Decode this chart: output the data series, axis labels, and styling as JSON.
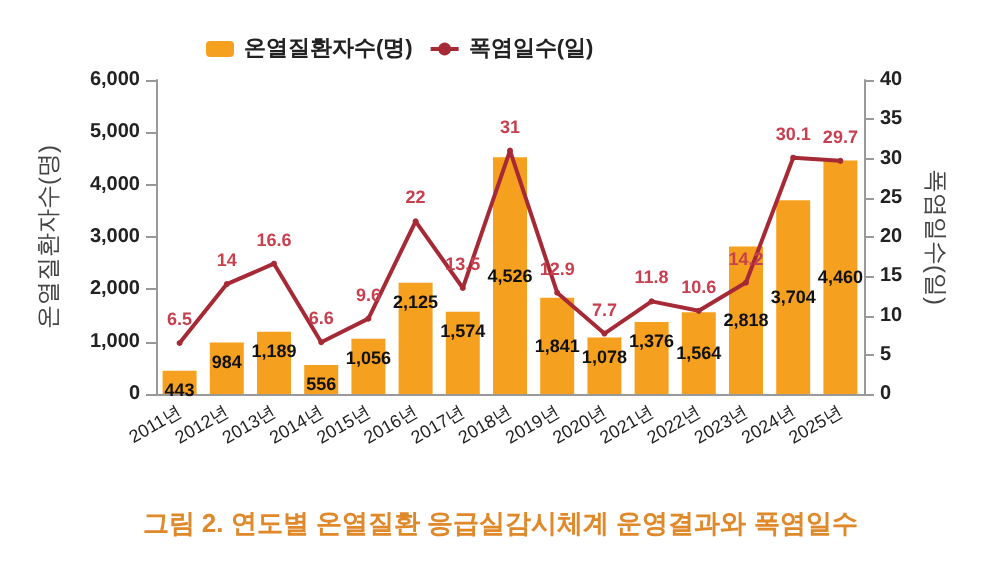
{
  "chart_data": {
    "type": "bar",
    "title": "그림 2. 연도별 온열질환 응급실감시체계 운영결과와 폭염일수",
    "ylabel": "온열질환자수(명)",
    "y2label": "폭염일수(일)",
    "categories": [
      "2011년",
      "2012년",
      "2013년",
      "2014년",
      "2015년",
      "2016년",
      "2017년",
      "2018년",
      "2019년",
      "2020년",
      "2021년",
      "2022년",
      "2023년",
      "2024년",
      "2025년"
    ],
    "series": [
      {
        "name": "온열질환자수(명)",
        "color": "#f5a01e",
        "values": [
          443,
          984,
          1189,
          556,
          1056,
          2125,
          1574,
          4526,
          1841,
          1078,
          1376,
          1564,
          2818,
          3704,
          4460
        ],
        "value_labels": [
          "443",
          "984",
          "1,189",
          "556",
          "1,056",
          "2,125",
          "1,574",
          "4,526",
          "1,841",
          "1,078",
          "1,376",
          "1,564",
          "2,818",
          "3,704",
          "4,460"
        ]
      },
      {
        "name": "폭염일수(일)",
        "type": "line",
        "axis": "y2",
        "color": "#a52a36",
        "values": [
          6.5,
          14,
          16.6,
          6.6,
          9.6,
          22,
          13.5,
          31,
          12.9,
          7.7,
          11.8,
          10.6,
          14.2,
          30.1,
          29.7
        ],
        "value_labels": [
          "6.5",
          "14",
          "16.6",
          "6.6",
          "9.6",
          "22",
          "13.5",
          "31",
          "12.9",
          "7.7",
          "11.8",
          "10.6",
          "14.2",
          "30.1",
          "29.7"
        ]
      }
    ],
    "ylim": [
      0,
      6000
    ],
    "yticks": [
      0,
      {
        "value": 1000,
        "label": "1,000"
      },
      {
        "value": 2000,
        "label": "2,000"
      },
      {
        "value": 3000,
        "label": "3,000"
      },
      {
        "value": 4000,
        "label": "4,000"
      },
      {
        "value": 5000,
        "label": "5,000"
      },
      {
        "value": 6000,
        "label": "6,000"
      }
    ],
    "y2lim": [
      0,
      40
    ],
    "y2ticks": [
      0,
      5,
      10,
      15,
      20,
      25,
      30,
      35,
      40
    ],
    "legend": "top",
    "grid": false,
    "marker": "circle"
  }
}
